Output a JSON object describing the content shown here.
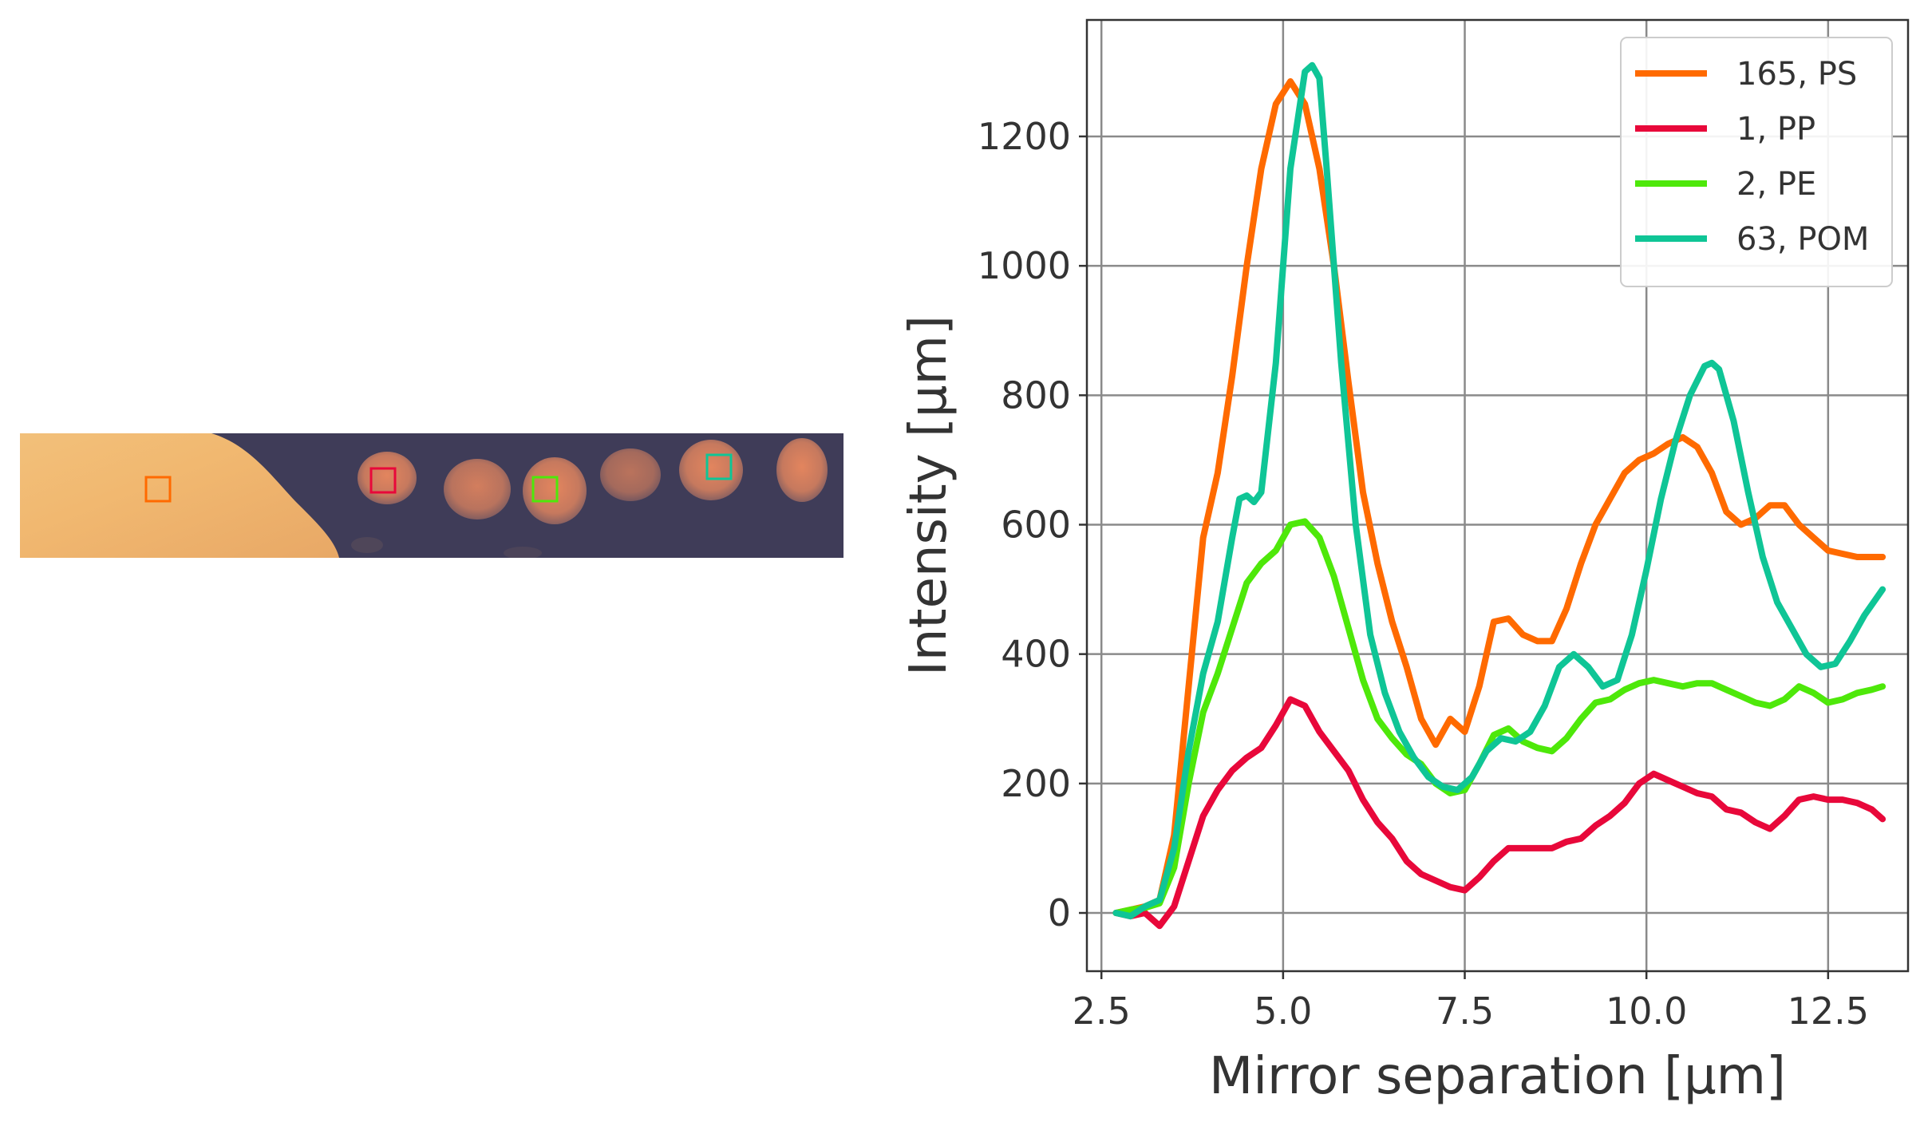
{
  "image_panel": {
    "background": "#3f3c58",
    "roi_markers": [
      {
        "series": "165, PS",
        "color": "#ff6a00"
      },
      {
        "series": "1, PP",
        "color": "#e8083a"
      },
      {
        "series": "2, PE",
        "color": "#4ee80a"
      },
      {
        "series": "63, POM",
        "color": "#0fc596"
      }
    ]
  },
  "chart_data": {
    "type": "line",
    "title": "",
    "xlabel": "Mirror separation [μm]",
    "ylabel": "Intensity [μm]",
    "xlim": [
      2.3,
      13.6
    ],
    "ylim": [
      -90,
      1380
    ],
    "xticks": [
      2.5,
      5.0,
      7.5,
      10.0,
      12.5
    ],
    "xtick_labels": [
      "2.5",
      "5.0",
      "7.5",
      "10.0",
      "12.5"
    ],
    "yticks": [
      0,
      200,
      400,
      600,
      800,
      1000,
      1200
    ],
    "ytick_labels": [
      "0",
      "200",
      "400",
      "600",
      "800",
      "1000",
      "1200"
    ],
    "grid": true,
    "legend_position": "top-right",
    "series": [
      {
        "name": "165, PS",
        "color": "#ff6a00",
        "x": [
          2.7,
          2.9,
          3.1,
          3.3,
          3.5,
          3.7,
          3.9,
          4.1,
          4.3,
          4.5,
          4.7,
          4.9,
          5.1,
          5.3,
          5.5,
          5.7,
          5.9,
          6.1,
          6.3,
          6.5,
          6.7,
          6.9,
          7.1,
          7.3,
          7.5,
          7.7,
          7.9,
          8.1,
          8.3,
          8.5,
          8.7,
          8.9,
          9.1,
          9.3,
          9.5,
          9.7,
          9.9,
          10.1,
          10.3,
          10.5,
          10.7,
          10.9,
          11.1,
          11.3,
          11.5,
          11.7,
          11.9,
          12.1,
          12.3,
          12.5,
          12.7,
          12.9,
          13.1,
          13.25
        ],
        "y": [
          0,
          5,
          10,
          20,
          120,
          350,
          580,
          680,
          830,
          1000,
          1150,
          1250,
          1285,
          1250,
          1150,
          1000,
          820,
          650,
          540,
          450,
          380,
          300,
          260,
          300,
          280,
          350,
          450,
          455,
          430,
          420,
          420,
          470,
          540,
          600,
          640,
          680,
          700,
          710,
          725,
          735,
          720,
          680,
          620,
          600,
          610,
          630,
          630,
          600,
          580,
          560,
          555,
          550,
          550,
          550
        ]
      },
      {
        "name": "1, PP",
        "color": "#e8083a",
        "x": [
          2.7,
          2.9,
          3.1,
          3.3,
          3.5,
          3.7,
          3.9,
          4.1,
          4.3,
          4.5,
          4.7,
          4.9,
          5.1,
          5.3,
          5.5,
          5.7,
          5.9,
          6.1,
          6.3,
          6.5,
          6.7,
          6.9,
          7.1,
          7.3,
          7.5,
          7.7,
          7.9,
          8.1,
          8.3,
          8.5,
          8.7,
          8.9,
          9.1,
          9.3,
          9.5,
          9.7,
          9.9,
          10.1,
          10.3,
          10.5,
          10.7,
          10.9,
          11.1,
          11.3,
          11.5,
          11.7,
          11.9,
          12.1,
          12.3,
          12.5,
          12.7,
          12.9,
          13.1,
          13.25
        ],
        "y": [
          0,
          -5,
          0,
          -20,
          10,
          80,
          150,
          190,
          220,
          240,
          255,
          290,
          330,
          320,
          280,
          250,
          220,
          175,
          140,
          115,
          80,
          60,
          50,
          40,
          35,
          55,
          80,
          100,
          100,
          100,
          100,
          110,
          115,
          135,
          150,
          170,
          200,
          215,
          205,
          195,
          185,
          180,
          160,
          155,
          140,
          130,
          150,
          175,
          180,
          175,
          175,
          170,
          160,
          145
        ]
      },
      {
        "name": "2, PE",
        "color": "#4ee80a",
        "x": [
          2.7,
          2.9,
          3.1,
          3.3,
          3.5,
          3.7,
          3.9,
          4.1,
          4.3,
          4.5,
          4.7,
          4.9,
          5.1,
          5.3,
          5.5,
          5.7,
          5.9,
          6.1,
          6.3,
          6.5,
          6.7,
          6.9,
          7.1,
          7.3,
          7.5,
          7.7,
          7.9,
          8.1,
          8.3,
          8.5,
          8.7,
          8.9,
          9.1,
          9.3,
          9.5,
          9.7,
          9.9,
          10.1,
          10.3,
          10.5,
          10.7,
          10.9,
          11.1,
          11.3,
          11.5,
          11.7,
          11.9,
          12.1,
          12.3,
          12.5,
          12.7,
          12.9,
          13.1,
          13.25
        ],
        "y": [
          0,
          5,
          8,
          15,
          70,
          200,
          310,
          370,
          440,
          510,
          540,
          560,
          600,
          605,
          580,
          520,
          440,
          360,
          300,
          270,
          245,
          230,
          200,
          185,
          190,
          230,
          275,
          285,
          265,
          255,
          250,
          270,
          300,
          325,
          330,
          345,
          355,
          360,
          355,
          350,
          355,
          355,
          345,
          335,
          325,
          320,
          330,
          350,
          340,
          325,
          330,
          340,
          345,
          350
        ]
      },
      {
        "name": "63, POM",
        "color": "#0fc596",
        "x": [
          2.7,
          2.9,
          3.1,
          3.3,
          3.5,
          3.7,
          3.9,
          4.1,
          4.3,
          4.4,
          4.5,
          4.6,
          4.7,
          4.9,
          5.1,
          5.3,
          5.4,
          5.5,
          5.6,
          5.8,
          6.0,
          6.2,
          6.4,
          6.6,
          6.8,
          7.0,
          7.2,
          7.4,
          7.6,
          7.8,
          8.0,
          8.2,
          8.4,
          8.6,
          8.8,
          9.0,
          9.2,
          9.4,
          9.6,
          9.8,
          10.0,
          10.2,
          10.4,
          10.6,
          10.8,
          10.9,
          11.0,
          11.2,
          11.4,
          11.6,
          11.8,
          12.0,
          12.2,
          12.4,
          12.6,
          12.8,
          13.0,
          13.25
        ],
        "y": [
          0,
          -5,
          10,
          20,
          100,
          250,
          370,
          450,
          580,
          640,
          645,
          635,
          650,
          850,
          1150,
          1300,
          1310,
          1290,
          1150,
          850,
          600,
          430,
          340,
          280,
          240,
          210,
          195,
          190,
          210,
          250,
          270,
          265,
          280,
          320,
          380,
          400,
          380,
          350,
          360,
          430,
          530,
          640,
          730,
          800,
          845,
          850,
          840,
          760,
          650,
          550,
          480,
          440,
          400,
          380,
          385,
          420,
          460,
          500
        ]
      }
    ]
  }
}
